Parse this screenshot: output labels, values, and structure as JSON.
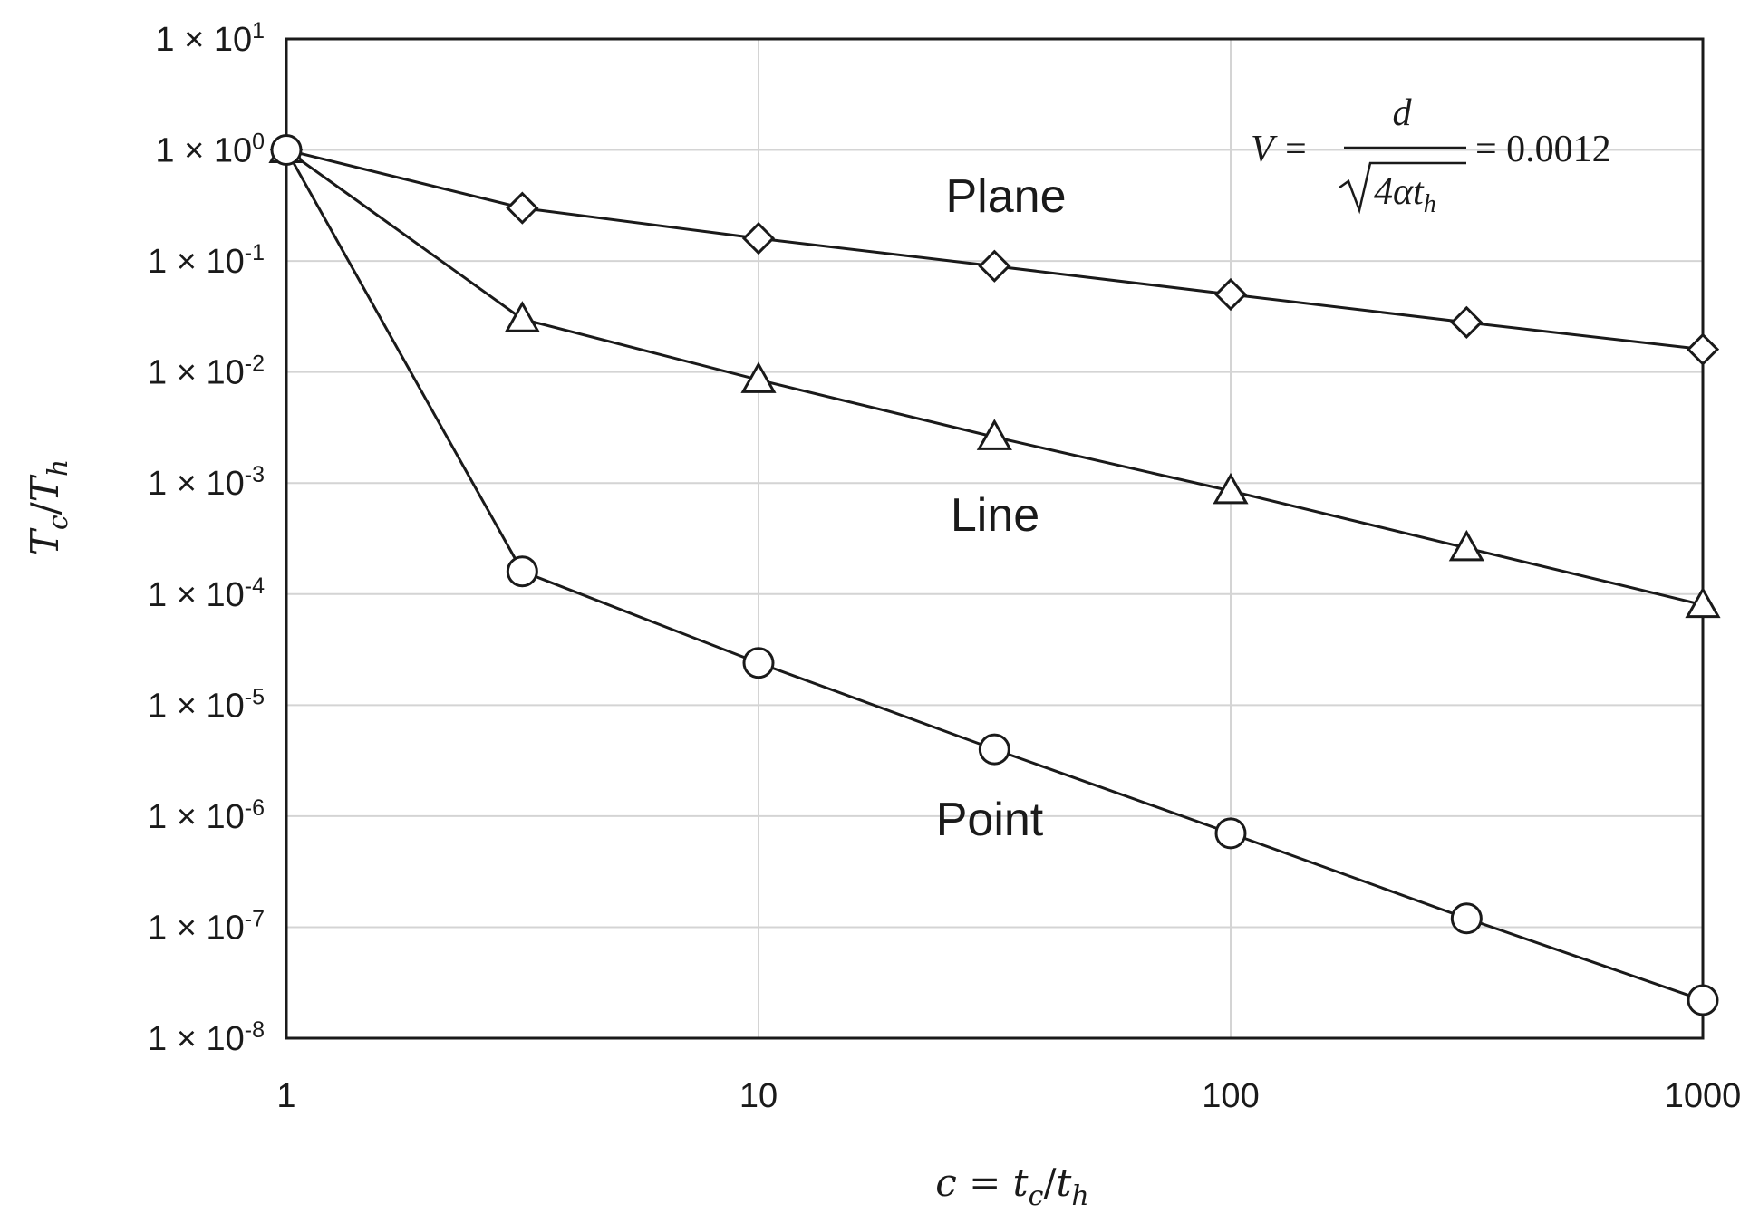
{
  "chart_data": {
    "type": "line",
    "x_scale": "log",
    "y_scale": "log",
    "xlim": [
      1,
      1000
    ],
    "ylim": [
      1e-08,
      10
    ],
    "grid": true,
    "x_ticks": [
      "1",
      "10",
      "100",
      "1000"
    ],
    "y_ticks": [
      {
        "mantissa": "1 × 10",
        "exp": "1"
      },
      {
        "mantissa": "1 × 10",
        "exp": "0"
      },
      {
        "mantissa": "1 × 10",
        "exp": "-1"
      },
      {
        "mantissa": "1 × 10",
        "exp": "-2"
      },
      {
        "mantissa": "1 × 10",
        "exp": "-3"
      },
      {
        "mantissa": "1 × 10",
        "exp": "-4"
      },
      {
        "mantissa": "1 × 10",
        "exp": "-5"
      },
      {
        "mantissa": "1 × 10",
        "exp": "-6"
      },
      {
        "mantissa": "1 × 10",
        "exp": "-7"
      },
      {
        "mantissa": "1 × 10",
        "exp": "-8"
      }
    ],
    "xlabel": "c = t_c/t_h",
    "ylabel": "T_c/T_h",
    "annotation": {
      "lhs": "V =",
      "numerator": "d",
      "denominator": "4αt",
      "denominator_sub": "h",
      "rhs": "= 0.0012"
    },
    "x": [
      1,
      3.16,
      10,
      31.6,
      100,
      316,
      1000
    ],
    "series": [
      {
        "name": "Plane",
        "marker": "diamond",
        "values": [
          1.0,
          0.3,
          0.16,
          0.09,
          0.05,
          0.028,
          0.016
        ]
      },
      {
        "name": "Line",
        "marker": "triangle",
        "values": [
          1.0,
          0.03,
          0.0085,
          0.0026,
          0.00085,
          0.00026,
          8e-05
        ]
      },
      {
        "name": "Point",
        "marker": "circle",
        "values": [
          1.0,
          0.00016,
          2.4e-05,
          4e-06,
          7e-07,
          1.2e-07,
          2.2e-08
        ]
      }
    ]
  }
}
